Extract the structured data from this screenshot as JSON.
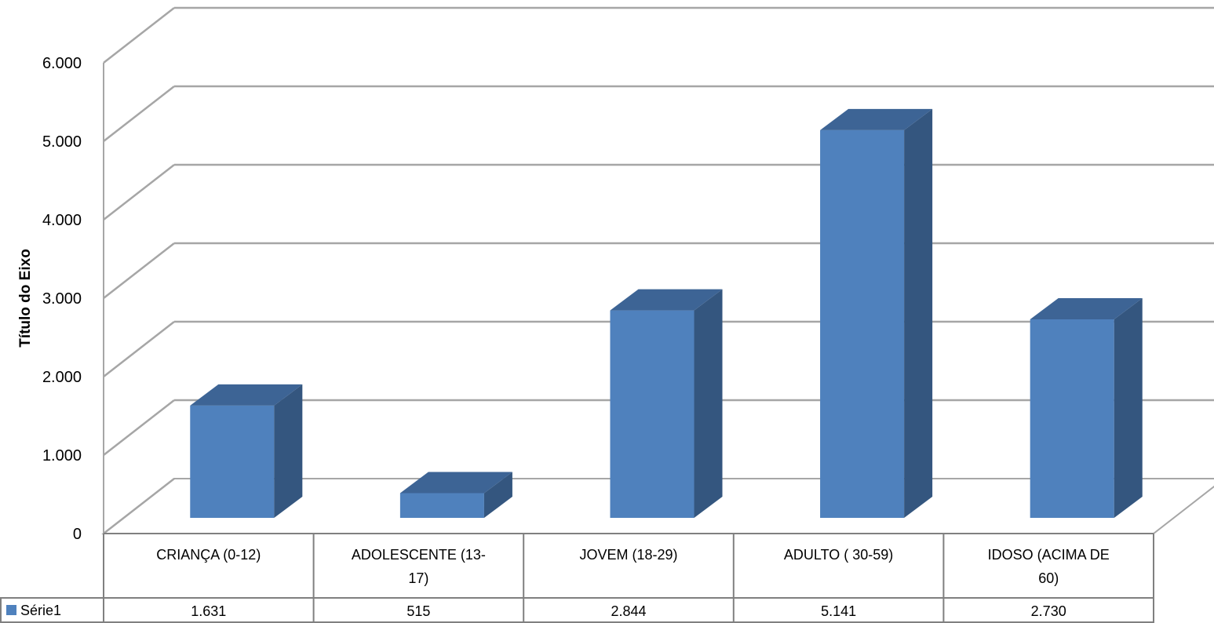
{
  "chart_data": {
    "type": "bar",
    "style": "3d-column-with-data-table",
    "ylabel": "Título do Eixo",
    "ylim": [
      0,
      6000
    ],
    "ytick_step": 1000,
    "ytick_labels": [
      "0",
      "1.000",
      "2.000",
      "3.000",
      "4.000",
      "5.000",
      "6.000"
    ],
    "grid": true,
    "categories": [
      [
        "CRIANÇA  (0-12)"
      ],
      [
        "ADOLESCENTE  (13-",
        "17)"
      ],
      [
        "JOVEM  (18-29)"
      ],
      [
        "ADULTO  ( 30-59)"
      ],
      [
        "IDOSO  (ACIMA DE",
        "60)"
      ]
    ],
    "series": [
      {
        "name": "Série1",
        "values": [
          1631,
          515,
          2844,
          5141,
          2730
        ],
        "value_labels": [
          "1.631",
          "515",
          "2.844",
          "5.141",
          "2.730"
        ]
      }
    ],
    "colors": {
      "bar_front": "#4F81BD",
      "bar_side": "#34567F",
      "bar_top": "#3D6495",
      "grid": "#A6A6A6",
      "table_border": "#808080"
    }
  }
}
